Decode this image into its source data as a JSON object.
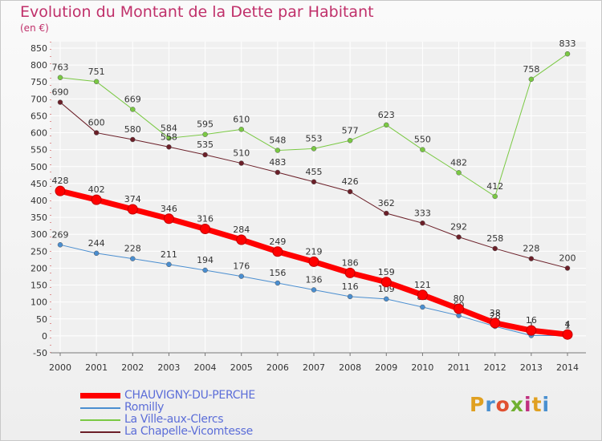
{
  "title": "Evolution du Montant de la Dette par Habitant",
  "subtitle": "(en €)",
  "logo": {
    "text": "Proxiti",
    "letters": [
      "P",
      "r",
      "o",
      "x",
      "i",
      "t",
      "i"
    ],
    "colors": [
      "#e0a020",
      "#4a90d0",
      "#e05030",
      "#70b030",
      "#c03080",
      "#e0a020",
      "#4a90d0"
    ]
  },
  "chart_data": {
    "type": "line",
    "x": [
      "2000",
      "2001",
      "2002",
      "2003",
      "2004",
      "2005",
      "2006",
      "2007",
      "2008",
      "2009",
      "2010",
      "2011",
      "2012",
      "2013",
      "2014"
    ],
    "ylim": [
      -50,
      850
    ],
    "yticks": [
      "-50",
      "0",
      "50",
      "100",
      "150",
      "200",
      "250",
      "300",
      "350",
      "400",
      "450",
      "500",
      "550",
      "600",
      "650",
      "700",
      "750",
      "800",
      "850"
    ],
    "grid": true,
    "series": [
      {
        "name": "La Ville-aux-Clercs",
        "color": "#7ac943",
        "width": 1,
        "values": [
          763,
          751,
          669,
          584,
          595,
          610,
          548,
          553,
          577,
          623,
          550,
          482,
          412,
          758,
          833
        ]
      },
      {
        "name": "La Chapelle-Vicomtesse",
        "color": "#6b1f28",
        "width": 1,
        "values": [
          690,
          600,
          580,
          558,
          535,
          510,
          483,
          455,
          426,
          362,
          333,
          292,
          258,
          228,
          200
        ]
      },
      {
        "name": "Romilly",
        "color": "#4a8ed0",
        "width": 1,
        "values": [
          269,
          244,
          228,
          211,
          194,
          176,
          156,
          136,
          116,
          109,
          85,
          60,
          28,
          1,
          1
        ]
      },
      {
        "name": "CHAUVIGNY-DU-PERCHE",
        "color": "#ff0000",
        "width": 7,
        "values": [
          428,
          402,
          374,
          346,
          316,
          284,
          249,
          219,
          186,
          159,
          121,
          80,
          38,
          16,
          4
        ]
      }
    ],
    "legend": [
      "CHAUVIGNY-DU-PERCHE",
      "Romilly",
      "La Ville-aux-Clercs",
      "La Chapelle-Vicomtesse"
    ],
    "legend_position": "bottom-left"
  }
}
